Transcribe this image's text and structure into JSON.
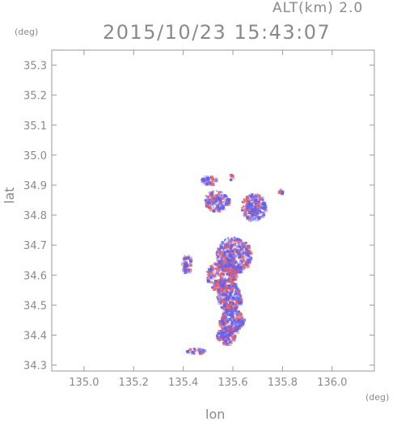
{
  "header": {
    "altitude_label": "ALT(km) 2.0",
    "timestamp": "2015/10/23 15:43:07"
  },
  "chart_data": {
    "type": "heatmap",
    "title": "2015/10/23 15:43:07",
    "subtitle": "ALT(km) 2.0",
    "xlabel": "lon",
    "ylabel": "lat",
    "x_unit": "(deg)",
    "y_unit": "(deg)",
    "xlim": [
      134.87,
      136.17
    ],
    "ylim": [
      34.28,
      35.35
    ],
    "x_ticks": [
      135.0,
      135.2,
      135.4,
      135.6,
      135.8,
      136.0
    ],
    "x_tick_labels": [
      "135.0",
      "135.2",
      "135.4",
      "135.6",
      "135.8",
      "136.0"
    ],
    "y_ticks": [
      34.3,
      34.4,
      34.5,
      34.6,
      34.7,
      34.8,
      34.9,
      35.0,
      35.1,
      35.2,
      35.3
    ],
    "y_tick_labels": [
      "34.3",
      "34.4",
      "34.5",
      "34.6",
      "34.7",
      "34.8",
      "34.9",
      "35.0",
      "35.1",
      "35.2",
      "35.3"
    ],
    "grid": false,
    "colors": {
      "positive": "#ee6060",
      "negative": "#6060ee",
      "axis": "#9a9a9a"
    },
    "echo_regions": [
      {
        "lon": 135.5,
        "lat": 34.92,
        "rlon": 0.03,
        "rlat": 0.015
      },
      {
        "lon": 135.59,
        "lat": 34.93,
        "rlon": 0.01,
        "rlat": 0.01
      },
      {
        "lon": 135.53,
        "lat": 34.85,
        "rlon": 0.05,
        "rlat": 0.035
      },
      {
        "lon": 135.68,
        "lat": 34.83,
        "rlon": 0.05,
        "rlat": 0.045
      },
      {
        "lon": 135.79,
        "lat": 34.88,
        "rlon": 0.01,
        "rlat": 0.01
      },
      {
        "lon": 135.6,
        "lat": 34.67,
        "rlon": 0.07,
        "rlat": 0.06
      },
      {
        "lon": 135.55,
        "lat": 34.6,
        "rlon": 0.06,
        "rlat": 0.05
      },
      {
        "lon": 135.58,
        "lat": 34.53,
        "rlon": 0.05,
        "rlat": 0.05
      },
      {
        "lon": 135.59,
        "lat": 34.45,
        "rlon": 0.05,
        "rlat": 0.04
      },
      {
        "lon": 135.57,
        "lat": 34.4,
        "rlon": 0.04,
        "rlat": 0.03
      },
      {
        "lon": 135.45,
        "lat": 34.35,
        "rlon": 0.04,
        "rlat": 0.01
      },
      {
        "lon": 135.41,
        "lat": 34.64,
        "rlon": 0.02,
        "rlat": 0.03
      }
    ]
  }
}
